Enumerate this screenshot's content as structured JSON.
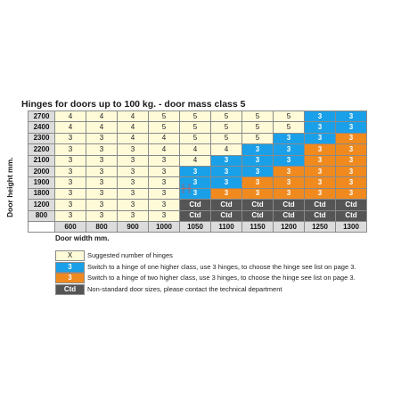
{
  "title": "Hinges for doors up to 100 kg. - door mass class 5",
  "y_axis_label": "Door height mm.",
  "x_axis_label": "Door width mm.",
  "colors": {
    "normal": "#fffbd9",
    "blue": "#1aa0e8",
    "orange": "#f08a1e",
    "ctd": "#555555",
    "header": "#dcdcdc"
  },
  "widths": [
    "600",
    "800",
    "900",
    "1000",
    "1050",
    "1100",
    "1150",
    "1200",
    "1250",
    "1300"
  ],
  "rows": [
    {
      "height": "2700",
      "cells": [
        {
          "v": "4",
          "t": "n"
        },
        {
          "v": "4",
          "t": "n"
        },
        {
          "v": "4",
          "t": "n"
        },
        {
          "v": "5",
          "t": "n"
        },
        {
          "v": "5",
          "t": "n"
        },
        {
          "v": "5",
          "t": "n"
        },
        {
          "v": "5",
          "t": "n"
        },
        {
          "v": "5",
          "t": "n"
        },
        {
          "v": "3",
          "t": "b"
        },
        {
          "v": "3",
          "t": "b"
        }
      ]
    },
    {
      "height": "2400",
      "cells": [
        {
          "v": "4",
          "t": "n"
        },
        {
          "v": "4",
          "t": "n"
        },
        {
          "v": "4",
          "t": "n"
        },
        {
          "v": "5",
          "t": "n"
        },
        {
          "v": "5",
          "t": "n"
        },
        {
          "v": "5",
          "t": "n"
        },
        {
          "v": "5",
          "t": "n"
        },
        {
          "v": "5",
          "t": "n"
        },
        {
          "v": "3",
          "t": "b"
        },
        {
          "v": "3",
          "t": "b"
        }
      ]
    },
    {
      "height": "2300",
      "cells": [
        {
          "v": "3",
          "t": "n"
        },
        {
          "v": "3",
          "t": "n"
        },
        {
          "v": "4",
          "t": "n"
        },
        {
          "v": "4",
          "t": "n"
        },
        {
          "v": "5",
          "t": "n"
        },
        {
          "v": "5",
          "t": "n"
        },
        {
          "v": "5",
          "t": "n"
        },
        {
          "v": "3",
          "t": "b"
        },
        {
          "v": "3",
          "t": "b"
        },
        {
          "v": "3",
          "t": "o"
        }
      ]
    },
    {
      "height": "2200",
      "cells": [
        {
          "v": "3",
          "t": "n"
        },
        {
          "v": "3",
          "t": "n"
        },
        {
          "v": "3",
          "t": "n"
        },
        {
          "v": "4",
          "t": "n"
        },
        {
          "v": "4",
          "t": "n"
        },
        {
          "v": "4",
          "t": "n"
        },
        {
          "v": "3",
          "t": "b"
        },
        {
          "v": "3",
          "t": "b"
        },
        {
          "v": "3",
          "t": "o"
        },
        {
          "v": "3",
          "t": "o"
        }
      ]
    },
    {
      "height": "2100",
      "cells": [
        {
          "v": "3",
          "t": "n"
        },
        {
          "v": "3",
          "t": "n"
        },
        {
          "v": "3",
          "t": "n"
        },
        {
          "v": "3",
          "t": "n"
        },
        {
          "v": "4",
          "t": "n"
        },
        {
          "v": "3",
          "t": "b"
        },
        {
          "v": "3",
          "t": "b"
        },
        {
          "v": "3",
          "t": "b"
        },
        {
          "v": "3",
          "t": "o"
        },
        {
          "v": "3",
          "t": "o"
        }
      ]
    },
    {
      "height": "2000",
      "cells": [
        {
          "v": "3",
          "t": "n"
        },
        {
          "v": "3",
          "t": "n"
        },
        {
          "v": "3",
          "t": "n"
        },
        {
          "v": "3",
          "t": "n"
        },
        {
          "v": "3",
          "t": "b"
        },
        {
          "v": "3",
          "t": "b"
        },
        {
          "v": "3",
          "t": "b"
        },
        {
          "v": "3",
          "t": "o"
        },
        {
          "v": "3",
          "t": "o"
        },
        {
          "v": "3",
          "t": "o"
        }
      ]
    },
    {
      "height": "1900",
      "cells": [
        {
          "v": "3",
          "t": "n"
        },
        {
          "v": "3",
          "t": "n"
        },
        {
          "v": "3",
          "t": "n"
        },
        {
          "v": "3",
          "t": "n"
        },
        {
          "v": "3",
          "t": "b"
        },
        {
          "v": "3",
          "t": "b"
        },
        {
          "v": "3",
          "t": "o"
        },
        {
          "v": "3",
          "t": "o"
        },
        {
          "v": "3",
          "t": "o"
        },
        {
          "v": "3",
          "t": "o"
        }
      ]
    },
    {
      "height": "1800",
      "cells": [
        {
          "v": "3",
          "t": "n"
        },
        {
          "v": "3",
          "t": "n"
        },
        {
          "v": "3",
          "t": "n"
        },
        {
          "v": "3",
          "t": "n"
        },
        {
          "v": "3",
          "t": "b"
        },
        {
          "v": "3",
          "t": "o"
        },
        {
          "v": "3",
          "t": "o"
        },
        {
          "v": "3",
          "t": "o"
        },
        {
          "v": "3",
          "t": "o"
        },
        {
          "v": "3",
          "t": "o"
        }
      ]
    },
    {
      "height": "1200",
      "cells": [
        {
          "v": "3",
          "t": "n"
        },
        {
          "v": "3",
          "t": "n"
        },
        {
          "v": "3",
          "t": "n"
        },
        {
          "v": "3",
          "t": "n"
        },
        {
          "v": "Ctd",
          "t": "c"
        },
        {
          "v": "Ctd",
          "t": "c"
        },
        {
          "v": "Ctd",
          "t": "c"
        },
        {
          "v": "Ctd",
          "t": "c"
        },
        {
          "v": "Ctd",
          "t": "c"
        },
        {
          "v": "Ctd",
          "t": "c"
        }
      ]
    },
    {
      "height": "800",
      "cells": [
        {
          "v": "3",
          "t": "n"
        },
        {
          "v": "3",
          "t": "n"
        },
        {
          "v": "3",
          "t": "n"
        },
        {
          "v": "3",
          "t": "n"
        },
        {
          "v": "Ctd",
          "t": "c"
        },
        {
          "v": "Ctd",
          "t": "c"
        },
        {
          "v": "Ctd",
          "t": "c"
        },
        {
          "v": "Ctd",
          "t": "c"
        },
        {
          "v": "Ctd",
          "t": "c"
        },
        {
          "v": "Ctd",
          "t": "c"
        }
      ]
    }
  ],
  "legend": [
    {
      "swatch": "X",
      "type": "n",
      "text": "Suggested number of hinges"
    },
    {
      "swatch": "3",
      "type": "b",
      "text": "Switch to a hinge of one higher class, use 3 hinges, to choose the hinge see list on page 3."
    },
    {
      "swatch": "3",
      "type": "o",
      "text": "Switch to a hinge of two higher class, use 3 hinges, to choose the hinge see list on page 3."
    },
    {
      "swatch": "Ctd",
      "type": "c",
      "text": "Non-standard door sizes, please contact the technical department"
    }
  ]
}
